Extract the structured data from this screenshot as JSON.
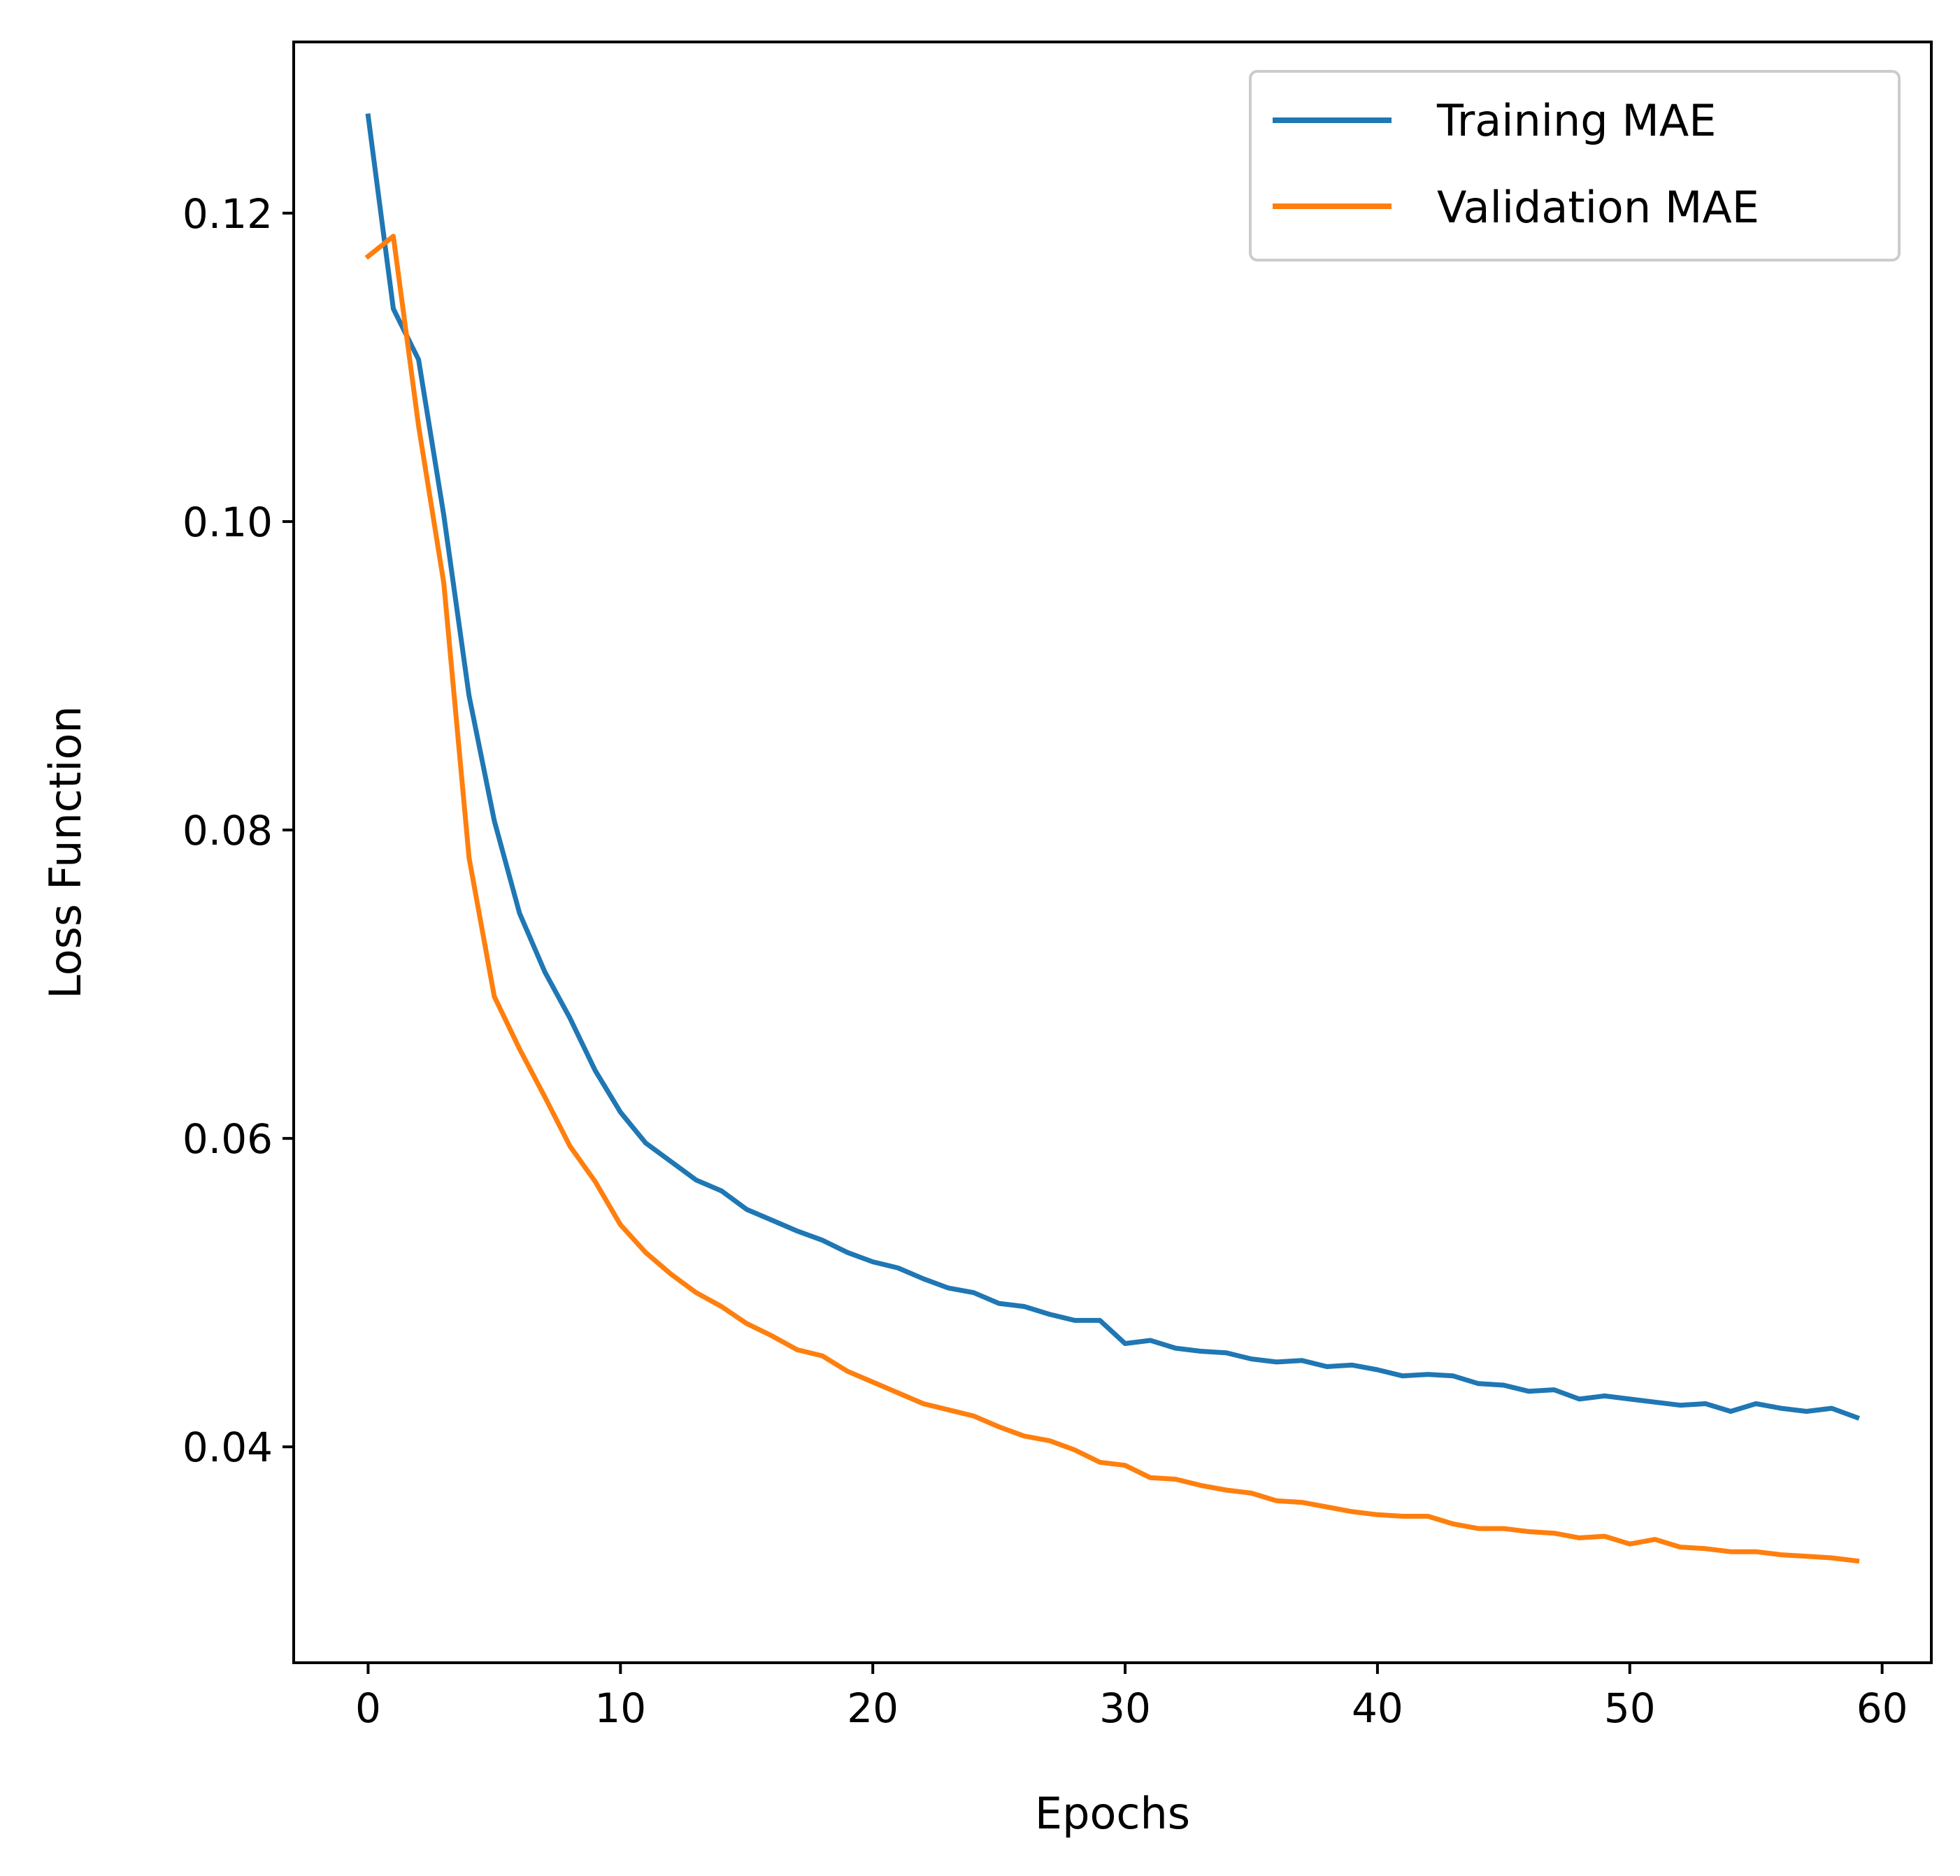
{
  "chart_data": {
    "type": "line",
    "title": "",
    "xlabel": "Epochs",
    "ylabel": "Loss Function",
    "xlim": [
      -2.95,
      61.95
    ],
    "ylim": [
      0.026,
      0.1311
    ],
    "xticks": [
      0,
      10,
      20,
      30,
      40,
      50,
      60
    ],
    "xtick_labels": [
      "0",
      "10",
      "20",
      "30",
      "40",
      "50",
      "60"
    ],
    "yticks": [
      0.04,
      0.06,
      0.08,
      0.1,
      0.12
    ],
    "ytick_labels": [
      "0.04",
      "0.06",
      "0.08",
      "0.10",
      "0.12"
    ],
    "grid": false,
    "legend_position": "top-right",
    "x": [
      0,
      1,
      2,
      3,
      4,
      5,
      6,
      7,
      8,
      9,
      10,
      11,
      12,
      13,
      14,
      15,
      16,
      17,
      18,
      19,
      20,
      21,
      22,
      23,
      24,
      25,
      26,
      27,
      28,
      29,
      30,
      31,
      32,
      33,
      34,
      35,
      36,
      37,
      38,
      39,
      40,
      41,
      42,
      43,
      44,
      45,
      46,
      47,
      48,
      49,
      50,
      51,
      52,
      53,
      54,
      55,
      56,
      57,
      58,
      59
    ],
    "series": [
      {
        "name": "Training MAE",
        "color": "#1f77b4",
        "values": [
          0.1263,
          0.1138,
          0.1105,
          0.1004,
          0.0887,
          0.0806,
          0.0746,
          0.0708,
          0.0678,
          0.0644,
          0.0617,
          0.0597,
          0.0585,
          0.0573,
          0.0566,
          0.0554,
          0.0547,
          0.054,
          0.0534,
          0.0526,
          0.052,
          0.0516,
          0.0509,
          0.0503,
          0.05,
          0.0493,
          0.0491,
          0.0486,
          0.0482,
          0.0482,
          0.0467,
          0.0469,
          0.0464,
          0.0462,
          0.0461,
          0.0457,
          0.0455,
          0.0456,
          0.0452,
          0.0453,
          0.045,
          0.0446,
          0.0447,
          0.0446,
          0.0441,
          0.044,
          0.0436,
          0.0437,
          0.0431,
          0.0433,
          0.0431,
          0.0429,
          0.0427,
          0.0428,
          0.0423,
          0.0428,
          0.0425,
          0.0423,
          0.0425,
          0.0419
        ]
      },
      {
        "name": "Validation MAE",
        "color": "#ff7f0e",
        "values": [
          0.1172,
          0.1185,
          0.1062,
          0.096,
          0.0782,
          0.0692,
          0.0658,
          0.0627,
          0.0595,
          0.0572,
          0.0544,
          0.0526,
          0.0512,
          0.05,
          0.0491,
          0.048,
          0.0472,
          0.0463,
          0.0459,
          0.0449,
          0.0442,
          0.0435,
          0.0428,
          0.0424,
          0.042,
          0.0413,
          0.0407,
          0.0404,
          0.0398,
          0.039,
          0.0388,
          0.038,
          0.0379,
          0.0375,
          0.0372,
          0.037,
          0.0365,
          0.0364,
          0.0361,
          0.0358,
          0.0356,
          0.0355,
          0.0355,
          0.035,
          0.0347,
          0.0347,
          0.0345,
          0.0344,
          0.0341,
          0.0342,
          0.0337,
          0.034,
          0.0335,
          0.0334,
          0.0332,
          0.0332,
          0.033,
          0.0329,
          0.0328,
          0.0326
        ]
      }
    ]
  }
}
